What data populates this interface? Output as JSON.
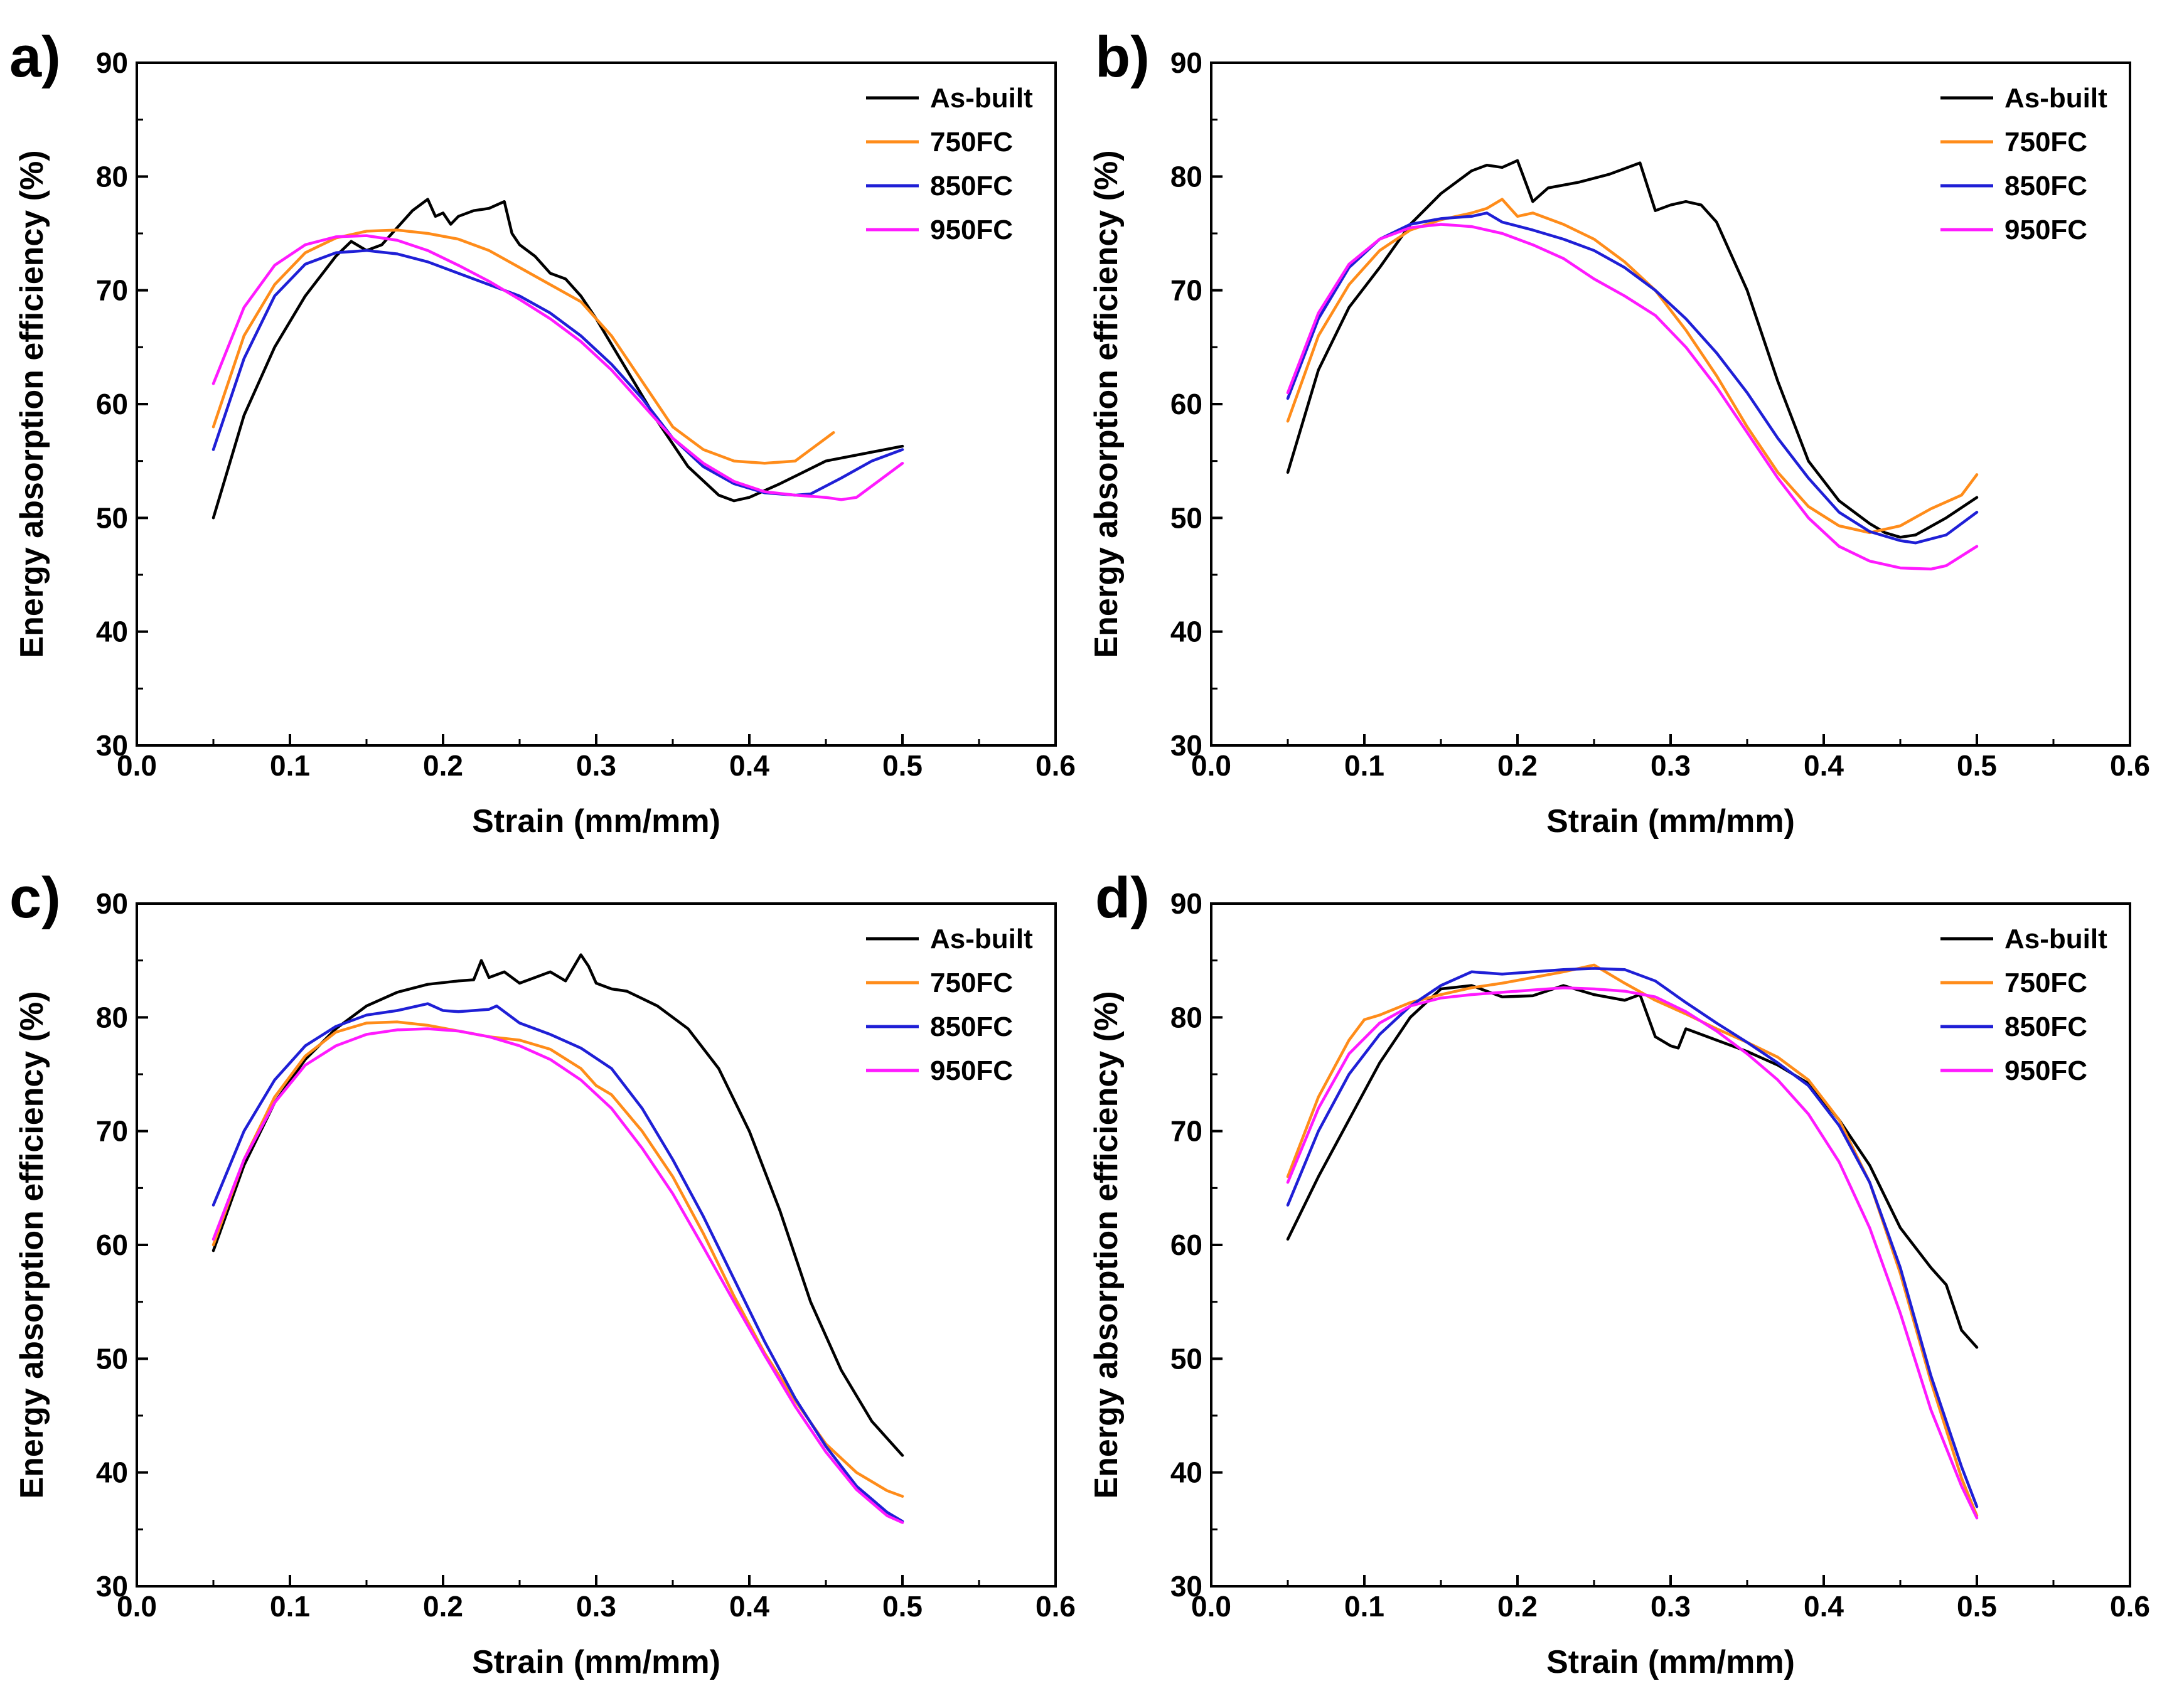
{
  "chart_data": [
    {
      "panel_label": "a)",
      "type": "line",
      "xlabel": "Strain (mm/mm)",
      "ylabel": "Energy absorption efficiency (%)",
      "xlim": [
        0.0,
        0.6
      ],
      "ylim": [
        30,
        90
      ],
      "xticks": [
        "0.0",
        "0.1",
        "0.2",
        "0.3",
        "0.4",
        "0.5",
        "0.6"
      ],
      "yticks": [
        "30",
        "40",
        "50",
        "60",
        "70",
        "80",
        "90"
      ],
      "grid": false,
      "legend_position": "top-right",
      "series": [
        {
          "name": "As-built",
          "color": "#000000",
          "x": [
            0.05,
            0.07,
            0.09,
            0.11,
            0.13,
            0.14,
            0.15,
            0.16,
            0.17,
            0.18,
            0.19,
            0.195,
            0.2,
            0.205,
            0.21,
            0.22,
            0.23,
            0.24,
            0.245,
            0.25,
            0.26,
            0.27,
            0.28,
            0.29,
            0.3,
            0.32,
            0.34,
            0.36,
            0.38,
            0.39,
            0.4,
            0.42,
            0.45,
            0.5
          ],
          "y": [
            50,
            59,
            65,
            69.5,
            73,
            74.3,
            73.5,
            74,
            75.5,
            77,
            78,
            76.5,
            76.8,
            75.8,
            76.5,
            77,
            77.2,
            77.8,
            75,
            74,
            73,
            71.5,
            71,
            69.5,
            67.5,
            63,
            58.5,
            54.5,
            52,
            51.5,
            51.8,
            53,
            55,
            56.3
          ]
        },
        {
          "name": "750FC",
          "color": "#ff8c1a",
          "x": [
            0.05,
            0.07,
            0.09,
            0.11,
            0.13,
            0.15,
            0.17,
            0.19,
            0.21,
            0.23,
            0.25,
            0.27,
            0.29,
            0.31,
            0.33,
            0.35,
            0.37,
            0.39,
            0.41,
            0.43,
            0.44,
            0.45,
            0.455
          ],
          "y": [
            58,
            66,
            70.5,
            73.3,
            74.6,
            75.2,
            75.3,
            75,
            74.5,
            73.5,
            72,
            70.5,
            69,
            66,
            62,
            58,
            56,
            55,
            54.8,
            55,
            56,
            57,
            57.5
          ]
        },
        {
          "name": "850FC",
          "color": "#1f1fd6",
          "x": [
            0.05,
            0.07,
            0.09,
            0.11,
            0.13,
            0.15,
            0.17,
            0.19,
            0.21,
            0.23,
            0.25,
            0.27,
            0.29,
            0.31,
            0.33,
            0.35,
            0.37,
            0.39,
            0.41,
            0.43,
            0.44,
            0.46,
            0.48,
            0.5
          ],
          "y": [
            56,
            64,
            69.5,
            72.3,
            73.3,
            73.5,
            73.2,
            72.5,
            71.5,
            70.5,
            69.5,
            68,
            66,
            63.5,
            60.5,
            57,
            54.5,
            53,
            52.2,
            52,
            52.1,
            53.5,
            55,
            56
          ]
        },
        {
          "name": "950FC",
          "color": "#ff1aff",
          "x": [
            0.05,
            0.07,
            0.09,
            0.11,
            0.13,
            0.15,
            0.17,
            0.19,
            0.21,
            0.23,
            0.25,
            0.27,
            0.29,
            0.31,
            0.33,
            0.35,
            0.37,
            0.39,
            0.41,
            0.43,
            0.45,
            0.46,
            0.47,
            0.48,
            0.5
          ],
          "y": [
            61.8,
            68.5,
            72.2,
            74,
            74.7,
            74.8,
            74.4,
            73.5,
            72.2,
            70.8,
            69.2,
            67.5,
            65.5,
            63,
            60,
            57,
            54.8,
            53.2,
            52.3,
            52,
            51.8,
            51.6,
            51.8,
            52.8,
            54.8
          ]
        }
      ]
    },
    {
      "panel_label": "b)",
      "type": "line",
      "xlabel": "Strain (mm/mm)",
      "ylabel": "Energy absorption efficiency (%)",
      "xlim": [
        0.0,
        0.6
      ],
      "ylim": [
        30,
        90
      ],
      "xticks": [
        "0.0",
        "0.1",
        "0.2",
        "0.3",
        "0.4",
        "0.5",
        "0.6"
      ],
      "yticks": [
        "30",
        "40",
        "50",
        "60",
        "70",
        "80",
        "90"
      ],
      "grid": false,
      "legend_position": "top-right",
      "series": [
        {
          "name": "As-built",
          "color": "#000000",
          "x": [
            0.05,
            0.07,
            0.09,
            0.11,
            0.13,
            0.15,
            0.17,
            0.18,
            0.19,
            0.2,
            0.21,
            0.22,
            0.24,
            0.26,
            0.28,
            0.29,
            0.3,
            0.31,
            0.32,
            0.33,
            0.34,
            0.35,
            0.37,
            0.39,
            0.41,
            0.43,
            0.44,
            0.45,
            0.46,
            0.48,
            0.5
          ],
          "y": [
            54,
            63,
            68.5,
            72,
            75.8,
            78.5,
            80.5,
            81,
            80.8,
            81.4,
            77.8,
            79,
            79.5,
            80.2,
            81.2,
            77,
            77.5,
            77.8,
            77.5,
            76,
            73,
            70,
            62,
            55,
            51.5,
            49.5,
            48.7,
            48.3,
            48.5,
            50,
            51.8
          ]
        },
        {
          "name": "750FC",
          "color": "#ff8c1a",
          "x": [
            0.05,
            0.07,
            0.09,
            0.11,
            0.13,
            0.15,
            0.17,
            0.18,
            0.19,
            0.2,
            0.21,
            0.23,
            0.25,
            0.27,
            0.29,
            0.31,
            0.33,
            0.35,
            0.37,
            0.39,
            0.41,
            0.43,
            0.45,
            0.47,
            0.49,
            0.5
          ],
          "y": [
            58.5,
            66,
            70.5,
            73.5,
            75.3,
            76.2,
            76.8,
            77.2,
            78,
            76.5,
            76.8,
            75.8,
            74.5,
            72.5,
            70,
            66.5,
            62.5,
            58,
            54,
            51,
            49.3,
            48.7,
            49.3,
            50.8,
            52,
            53.8
          ]
        },
        {
          "name": "850FC",
          "color": "#1f1fd6",
          "x": [
            0.05,
            0.07,
            0.09,
            0.11,
            0.13,
            0.15,
            0.17,
            0.18,
            0.19,
            0.21,
            0.23,
            0.25,
            0.27,
            0.29,
            0.31,
            0.33,
            0.35,
            0.37,
            0.39,
            0.41,
            0.43,
            0.45,
            0.46,
            0.48,
            0.5
          ],
          "y": [
            60.5,
            67.5,
            72,
            74.5,
            75.8,
            76.3,
            76.5,
            76.8,
            76,
            75.3,
            74.5,
            73.5,
            72,
            70,
            67.5,
            64.5,
            61,
            57,
            53.5,
            50.5,
            48.8,
            48,
            47.8,
            48.5,
            50.5
          ]
        },
        {
          "name": "950FC",
          "color": "#ff1aff",
          "x": [
            0.05,
            0.07,
            0.09,
            0.11,
            0.13,
            0.15,
            0.17,
            0.19,
            0.21,
            0.23,
            0.25,
            0.27,
            0.29,
            0.31,
            0.33,
            0.35,
            0.37,
            0.39,
            0.41,
            0.43,
            0.45,
            0.47,
            0.48,
            0.5
          ],
          "y": [
            61,
            68,
            72.3,
            74.5,
            75.5,
            75.8,
            75.6,
            75,
            74,
            72.8,
            71,
            69.5,
            67.8,
            65,
            61.5,
            57.5,
            53.5,
            50,
            47.5,
            46.2,
            45.6,
            45.5,
            45.8,
            47.5
          ]
        }
      ]
    },
    {
      "panel_label": "c)",
      "type": "line",
      "xlabel": "Strain (mm/mm)",
      "ylabel": "Energy absorption efficiency (%)",
      "xlim": [
        0.0,
        0.6
      ],
      "ylim": [
        30,
        90
      ],
      "xticks": [
        "0.0",
        "0.1",
        "0.2",
        "0.3",
        "0.4",
        "0.5",
        "0.6"
      ],
      "yticks": [
        "30",
        "40",
        "50",
        "60",
        "70",
        "80",
        "90"
      ],
      "grid": false,
      "legend_position": "top-right",
      "series": [
        {
          "name": "As-built",
          "color": "#000000",
          "x": [
            0.05,
            0.07,
            0.09,
            0.11,
            0.13,
            0.15,
            0.17,
            0.19,
            0.21,
            0.22,
            0.225,
            0.23,
            0.24,
            0.25,
            0.26,
            0.27,
            0.28,
            0.29,
            0.295,
            0.3,
            0.31,
            0.32,
            0.34,
            0.36,
            0.38,
            0.4,
            0.42,
            0.44,
            0.46,
            0.48,
            0.5
          ],
          "y": [
            59.5,
            67,
            72.5,
            76.3,
            79,
            81,
            82.2,
            82.9,
            83.2,
            83.3,
            85,
            83.5,
            84,
            83,
            83.5,
            84,
            83.2,
            85.5,
            84.5,
            83,
            82.5,
            82.3,
            81,
            79,
            75.5,
            70,
            63,
            55,
            49,
            44.5,
            41.5
          ]
        },
        {
          "name": "750FC",
          "color": "#ff8c1a",
          "x": [
            0.05,
            0.07,
            0.09,
            0.11,
            0.13,
            0.15,
            0.17,
            0.19,
            0.21,
            0.23,
            0.25,
            0.27,
            0.29,
            0.3,
            0.31,
            0.33,
            0.35,
            0.37,
            0.39,
            0.41,
            0.43,
            0.45,
            0.47,
            0.49,
            0.5
          ],
          "y": [
            60,
            67.5,
            73,
            76.6,
            78.7,
            79.5,
            79.6,
            79.3,
            78.8,
            78.3,
            78,
            77.2,
            75.5,
            74,
            73.2,
            70,
            66,
            61,
            55.5,
            50.5,
            46.3,
            42.5,
            40,
            38.4,
            37.9
          ]
        },
        {
          "name": "850FC",
          "color": "#1f1fd6",
          "x": [
            0.05,
            0.07,
            0.09,
            0.11,
            0.13,
            0.15,
            0.17,
            0.19,
            0.2,
            0.21,
            0.23,
            0.235,
            0.25,
            0.27,
            0.29,
            0.31,
            0.33,
            0.35,
            0.37,
            0.39,
            0.41,
            0.43,
            0.45,
            0.47,
            0.49,
            0.5
          ],
          "y": [
            63.5,
            70,
            74.5,
            77.5,
            79.2,
            80.2,
            80.6,
            81.2,
            80.6,
            80.5,
            80.7,
            81,
            79.5,
            78.5,
            77.3,
            75.5,
            72,
            67.5,
            62.5,
            57,
            51.5,
            46.5,
            42.3,
            38.8,
            36.5,
            35.7
          ]
        },
        {
          "name": "950FC",
          "color": "#ff1aff",
          "x": [
            0.05,
            0.07,
            0.09,
            0.11,
            0.13,
            0.15,
            0.17,
            0.19,
            0.21,
            0.23,
            0.25,
            0.27,
            0.29,
            0.31,
            0.33,
            0.35,
            0.37,
            0.39,
            0.41,
            0.43,
            0.45,
            0.47,
            0.49,
            0.5
          ],
          "y": [
            60.5,
            67.5,
            72.5,
            75.8,
            77.5,
            78.5,
            78.9,
            79,
            78.8,
            78.3,
            77.5,
            76.3,
            74.5,
            72,
            68.5,
            64.5,
            59.8,
            55,
            50.3,
            45.8,
            41.8,
            38.5,
            36.2,
            35.6
          ]
        }
      ]
    },
    {
      "panel_label": "d)",
      "type": "line",
      "xlabel": "Strain (mm/mm)",
      "ylabel": "Energy absorption efficiency (%)",
      "xlim": [
        0.0,
        0.6
      ],
      "ylim": [
        30,
        90
      ],
      "xticks": [
        "0.0",
        "0.1",
        "0.2",
        "0.3",
        "0.4",
        "0.5",
        "0.6"
      ],
      "yticks": [
        "30",
        "40",
        "50",
        "60",
        "70",
        "80",
        "90"
      ],
      "grid": false,
      "legend_position": "top-right",
      "series": [
        {
          "name": "As-built",
          "color": "#000000",
          "x": [
            0.05,
            0.07,
            0.09,
            0.11,
            0.13,
            0.15,
            0.17,
            0.19,
            0.21,
            0.23,
            0.25,
            0.27,
            0.28,
            0.29,
            0.3,
            0.305,
            0.31,
            0.33,
            0.35,
            0.37,
            0.39,
            0.41,
            0.43,
            0.45,
            0.47,
            0.48,
            0.49,
            0.5
          ],
          "y": [
            60.5,
            66,
            71,
            76,
            80,
            82.5,
            82.8,
            81.8,
            81.9,
            82.8,
            82,
            81.5,
            82,
            78.3,
            77.5,
            77.3,
            79,
            78,
            77,
            75.8,
            74.2,
            71,
            67,
            61.5,
            58,
            56.5,
            52.5,
            51
          ]
        },
        {
          "name": "750FC",
          "color": "#ff8c1a",
          "x": [
            0.05,
            0.07,
            0.09,
            0.1,
            0.11,
            0.13,
            0.15,
            0.17,
            0.19,
            0.21,
            0.23,
            0.25,
            0.27,
            0.29,
            0.31,
            0.33,
            0.35,
            0.37,
            0.39,
            0.41,
            0.43,
            0.45,
            0.47,
            0.49,
            0.5
          ],
          "y": [
            66,
            73,
            78,
            79.8,
            80.2,
            81.3,
            82,
            82.6,
            83,
            83.5,
            84,
            84.6,
            83,
            81.5,
            80.3,
            79,
            77.8,
            76.5,
            74.5,
            71,
            65.5,
            57.5,
            48,
            39.5,
            36.2
          ]
        },
        {
          "name": "850FC",
          "color": "#1f1fd6",
          "x": [
            0.05,
            0.07,
            0.09,
            0.11,
            0.13,
            0.15,
            0.17,
            0.19,
            0.21,
            0.23,
            0.25,
            0.27,
            0.29,
            0.31,
            0.33,
            0.35,
            0.37,
            0.39,
            0.41,
            0.43,
            0.45,
            0.47,
            0.49,
            0.5
          ],
          "y": [
            63.5,
            70,
            75,
            78.5,
            81,
            82.8,
            84,
            83.8,
            84,
            84.2,
            84.3,
            84.2,
            83.2,
            81.3,
            79.5,
            77.8,
            76,
            74,
            70.5,
            65.5,
            58,
            48.5,
            40.5,
            37
          ]
        },
        {
          "name": "950FC",
          "color": "#ff1aff",
          "x": [
            0.05,
            0.07,
            0.09,
            0.11,
            0.13,
            0.15,
            0.17,
            0.19,
            0.21,
            0.23,
            0.25,
            0.27,
            0.29,
            0.31,
            0.33,
            0.35,
            0.37,
            0.39,
            0.41,
            0.43,
            0.45,
            0.47,
            0.49,
            0.5
          ],
          "y": [
            65.5,
            72,
            76.8,
            79.5,
            81,
            81.7,
            82,
            82.2,
            82.4,
            82.6,
            82.5,
            82.3,
            81.8,
            80.5,
            78.8,
            76.8,
            74.5,
            71.5,
            67.3,
            61.5,
            54,
            45.5,
            38.8,
            36
          ]
        }
      ]
    }
  ]
}
